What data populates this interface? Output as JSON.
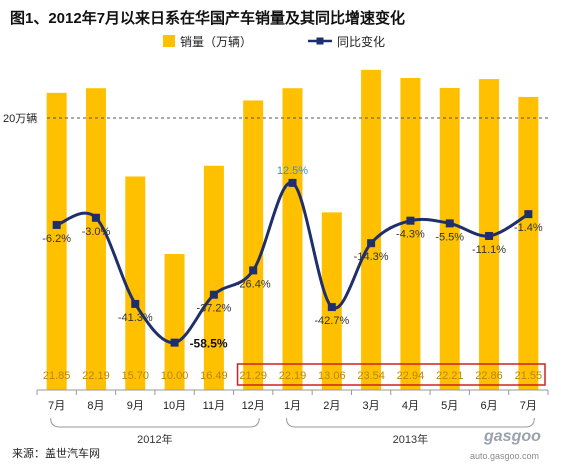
{
  "chart_data": {
    "type": "bar",
    "title": "图1、2012年7月以来日系在华国产车销量及其同比增速变化",
    "categories": [
      "7月",
      "8月",
      "9月",
      "10月",
      "11月",
      "12月",
      "1月",
      "2月",
      "3月",
      "4月",
      "5月",
      "6月",
      "7月"
    ],
    "year_groups": [
      {
        "label": "2012年",
        "count": 6
      },
      {
        "label": "2013年",
        "count": 7
      }
    ],
    "series": [
      {
        "name": "销量（万辆）",
        "kind": "bar",
        "color": "#FFC000",
        "values": [
          21.85,
          22.19,
          15.7,
          10.0,
          16.49,
          21.29,
          22.19,
          13.06,
          23.54,
          22.94,
          22.21,
          22.86,
          21.55
        ]
      },
      {
        "name": "同比变化",
        "kind": "line",
        "color": "#1F2F6B",
        "values": [
          -6.2,
          -3.0,
          -41.3,
          -58.5,
          -37.2,
          -26.4,
          12.5,
          -42.7,
          -14.3,
          -4.3,
          -5.5,
          -11.1,
          -1.4
        ],
        "labels": [
          "-6.2%",
          "-3.0%",
          "-41.3%",
          "-58.5%",
          "-37.2%",
          "-26.4%",
          "12.5%",
          "-42.7%",
          "-14.3%",
          "-4.3%",
          "-5.5%",
          "-11.1%",
          "-1.4%"
        ]
      }
    ],
    "bar_value_labels": [
      "21.85",
      "22.19",
      "15.70",
      "10.00",
      "16.49",
      "21.29",
      "22.19",
      "13.06",
      "23.54",
      "22.94",
      "22.21",
      "22.86",
      "21.55"
    ],
    "reference_line": {
      "value": 20,
      "label": "20万辆",
      "style": "dashed"
    },
    "highlight_box": {
      "from_index": 5,
      "to_index": 12,
      "color": "#CC2222"
    },
    "legend_position": "top-center",
    "grid": false
  },
  "source": "来源：盖世汽车网",
  "watermark": {
    "brand": "gasgoo",
    "url": "auto.gasgoo.com"
  }
}
